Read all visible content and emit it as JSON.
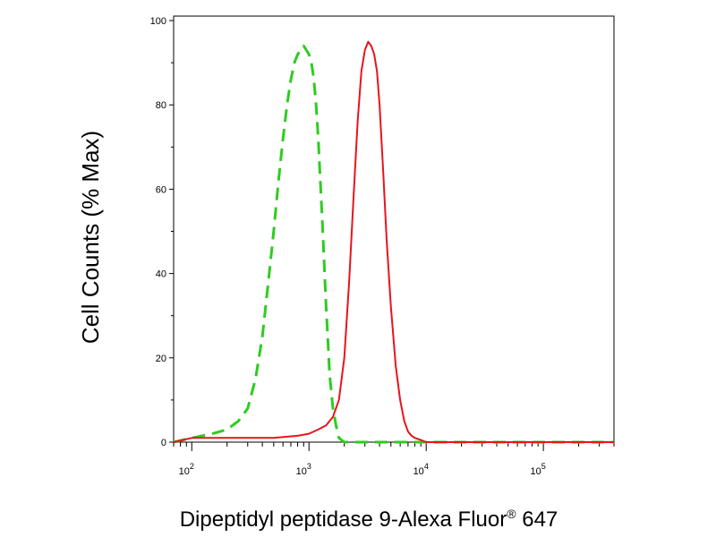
{
  "chart_data": {
    "type": "line",
    "title": "",
    "xlabel": "Dipeptidyl peptidase 9-Alexa Fluor",
    "xlabel_superscript": "®",
    "xlabel_suffix": " 647",
    "ylabel": "Cell Counts (% Max)",
    "xscale": "log",
    "xlim": [
      70,
      400000
    ],
    "ylim": [
      0,
      100
    ],
    "grid": false,
    "legend": "none",
    "y_ticks": [
      0,
      20,
      40,
      60,
      80,
      100
    ],
    "y_tick_labels": [
      "0",
      "20",
      "40",
      "60",
      "80",
      "100"
    ],
    "x_ticks": [
      100,
      1000,
      10000,
      100000
    ],
    "x_tick_labels": [
      {
        "base": "10",
        "exp": "2"
      },
      {
        "base": "10",
        "exp": "3"
      },
      {
        "base": "10",
        "exp": "4"
      },
      {
        "base": "10",
        "exp": "5"
      }
    ],
    "series": [
      {
        "color": "#2ecc20",
        "dash": "dashed",
        "x": [
          70,
          100,
          150,
          200,
          250,
          300,
          350,
          400,
          450,
          500,
          550,
          600,
          650,
          700,
          750,
          800,
          850,
          900,
          950,
          1000,
          1050,
          1100,
          1150,
          1200,
          1250,
          1300,
          1350,
          1400,
          1450,
          1500,
          1600,
          1700,
          1800,
          2000,
          2500,
          5000,
          20000,
          400000
        ],
        "y": [
          0,
          1,
          2,
          3,
          5,
          8,
          15,
          25,
          38,
          50,
          62,
          72,
          80,
          86,
          90,
          92,
          93,
          94,
          93,
          92,
          90,
          86,
          80,
          72,
          62,
          52,
          42,
          32,
          24,
          16,
          8,
          4,
          1,
          0,
          0,
          0,
          0,
          0
        ]
      },
      {
        "color": "#e8141a",
        "dash": "solid",
        "x": [
          70,
          100,
          200,
          500,
          800,
          1000,
          1200,
          1400,
          1600,
          1800,
          2000,
          2200,
          2400,
          2600,
          2800,
          3000,
          3200,
          3400,
          3600,
          3800,
          4000,
          4300,
          4600,
          5000,
          5500,
          6000,
          6500,
          7000,
          7500,
          8000,
          9000,
          10000,
          400000
        ],
        "y": [
          0,
          1,
          1,
          1,
          1.5,
          2,
          3,
          4,
          6,
          10,
          20,
          38,
          58,
          76,
          88,
          93,
          95,
          94,
          92,
          88,
          80,
          64,
          48,
          32,
          18,
          10,
          5,
          2.5,
          1.5,
          1,
          0.5,
          0,
          0
        ]
      }
    ]
  }
}
